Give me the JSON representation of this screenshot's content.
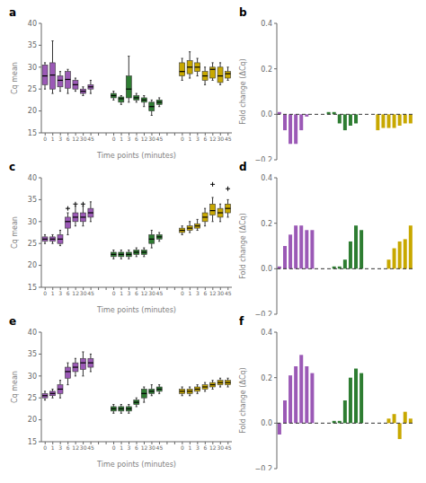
{
  "chart_data": [
    {
      "type": "box",
      "title": "a",
      "xlabel": "Time points (minutes)",
      "ylabel": "Cq mean",
      "categories": [
        "0",
        "1",
        "3",
        "6",
        "12",
        "30",
        "45"
      ],
      "ylim": [
        15,
        40
      ],
      "yticks": [
        15,
        20,
        25,
        30,
        35,
        40
      ],
      "grid": false,
      "series": [
        {
          "color": "#9B59B6",
          "medians": [
            28.0,
            28.2,
            27.0,
            27.2,
            26.0,
            24.5,
            25.5
          ],
          "q1": [
            26.0,
            25.0,
            25.5,
            25.2,
            25.0,
            24.0,
            25.0
          ],
          "q3": [
            30.5,
            31.0,
            28.0,
            29.0,
            27.0,
            25.0,
            26.0
          ],
          "whisker_low": [
            25.0,
            24.0,
            24.5,
            24.0,
            24.5,
            23.5,
            24.0
          ],
          "whisker_high": [
            31.0,
            36.0,
            29.0,
            29.5,
            27.5,
            25.5,
            27.0
          ],
          "outliers": [
            null,
            null,
            null,
            null,
            null,
            null,
            null
          ]
        },
        {
          "color": "#2E7D32",
          "medians": [
            23.5,
            22.8,
            25.0,
            23.0,
            22.5,
            21.0,
            22.0
          ],
          "q1": [
            23.0,
            22.0,
            23.0,
            22.5,
            22.0,
            20.0,
            21.5
          ],
          "q3": [
            24.0,
            23.2,
            28.0,
            23.5,
            23.0,
            22.0,
            22.5
          ],
          "whisker_low": [
            22.5,
            21.5,
            22.0,
            22.0,
            21.0,
            19.0,
            21.0
          ],
          "whisker_high": [
            24.5,
            23.5,
            32.5,
            24.0,
            23.5,
            22.5,
            23.0
          ],
          "outliers": [
            null,
            null,
            null,
            null,
            null,
            null,
            null
          ]
        },
        {
          "color": "#C8A800",
          "medians": [
            29.0,
            30.0,
            30.0,
            28.0,
            29.5,
            28.0,
            28.5
          ],
          "q1": [
            28.0,
            28.5,
            29.0,
            27.0,
            27.5,
            26.5,
            27.5
          ],
          "q3": [
            31.0,
            31.5,
            31.0,
            29.0,
            30.0,
            30.0,
            29.0
          ],
          "whisker_low": [
            27.0,
            27.5,
            28.0,
            26.0,
            27.0,
            26.0,
            27.0
          ],
          "whisker_high": [
            32.0,
            33.5,
            32.0,
            30.0,
            31.0,
            31.0,
            30.0
          ],
          "outliers": [
            null,
            null,
            null,
            null,
            null,
            null,
            null
          ]
        }
      ]
    },
    {
      "type": "bar",
      "title": "b",
      "ylabel": "Fold change  (ΔCq)",
      "ylim": [
        -0.2,
        0.4
      ],
      "yticks": [
        {
          "value": -0.2,
          "label": "−0.2"
        },
        {
          "value": 0,
          "label": "0.0"
        },
        0.2,
        0.4
      ],
      "tick_labels": "y",
      "grid": false,
      "series": [
        {
          "color": "#9B59B6",
          "values": [
            0.01,
            -0.07,
            -0.13,
            -0.13,
            -0.07,
            -0.01,
            0.0
          ]
        },
        {
          "color": "#2E7D32",
          "values": [
            0.01,
            0.01,
            -0.04,
            -0.07,
            -0.05,
            -0.04,
            0.0
          ]
        },
        {
          "color": "#C8A800",
          "values": [
            -0.07,
            -0.06,
            -0.06,
            -0.06,
            -0.05,
            -0.04,
            -0.04
          ]
        }
      ]
    },
    {
      "type": "box",
      "title": "c",
      "xlabel": "Time points (minutes)",
      "ylabel": "Cq mean",
      "categories": [
        "0",
        "1",
        "3",
        "6",
        "12",
        "30",
        "45"
      ],
      "ylim": [
        15,
        40
      ],
      "yticks": [
        15,
        20,
        25,
        30,
        35,
        40
      ],
      "grid": false,
      "series": [
        {
          "color": "#9B59B6",
          "medians": [
            26.0,
            26.0,
            26.0,
            30.0,
            31.0,
            31.0,
            32.0
          ],
          "q1": [
            25.5,
            25.5,
            25.0,
            28.5,
            30.0,
            30.0,
            31.0
          ],
          "q3": [
            26.5,
            26.5,
            27.0,
            31.0,
            32.0,
            32.0,
            33.0
          ],
          "whisker_low": [
            25.0,
            25.0,
            24.5,
            27.0,
            29.0,
            29.0,
            30.0
          ],
          "whisker_high": [
            27.0,
            27.0,
            28.0,
            32.0,
            33.5,
            33.5,
            34.5
          ],
          "outliers": [
            null,
            null,
            null,
            33.0,
            34.0,
            34.0,
            null
          ]
        },
        {
          "color": "#2E7D32",
          "medians": [
            22.5,
            22.5,
            22.5,
            23.0,
            23.0,
            26.0,
            26.5
          ],
          "q1": [
            22.0,
            22.0,
            22.0,
            22.5,
            22.5,
            25.0,
            26.0
          ],
          "q3": [
            23.0,
            23.0,
            23.0,
            23.5,
            23.5,
            27.0,
            27.0
          ],
          "whisker_low": [
            21.5,
            21.5,
            21.5,
            22.0,
            22.0,
            24.0,
            25.5
          ],
          "whisker_high": [
            23.5,
            23.5,
            23.5,
            24.0,
            24.0,
            28.0,
            27.5
          ],
          "outliers": [
            null,
            null,
            null,
            null,
            null,
            null,
            null
          ]
        },
        {
          "color": "#C8A800",
          "medians": [
            28.0,
            28.5,
            29.0,
            31.0,
            32.5,
            32.0,
            33.0
          ],
          "q1": [
            27.5,
            28.0,
            28.5,
            30.0,
            31.5,
            31.0,
            32.0
          ],
          "q3": [
            28.5,
            29.0,
            29.5,
            32.0,
            34.0,
            33.0,
            34.0
          ],
          "whisker_low": [
            27.0,
            27.5,
            28.0,
            29.0,
            30.0,
            30.0,
            31.0
          ],
          "whisker_high": [
            29.0,
            30.0,
            30.5,
            33.0,
            35.5,
            34.0,
            35.0
          ],
          "outliers": [
            null,
            null,
            null,
            null,
            38.5,
            null,
            37.5
          ]
        }
      ]
    },
    {
      "type": "bar",
      "title": "d",
      "ylabel": "Fold change  (ΔCq)",
      "ylim": [
        -0.2,
        0.4
      ],
      "yticks": [
        {
          "value": -0.2,
          "label": "−0.2"
        },
        {
          "value": 0,
          "label": "0.0"
        },
        0.2,
        0.4
      ],
      "tick_labels": "y",
      "grid": false,
      "series": [
        {
          "color": "#9B59B6",
          "values": [
            0.01,
            0.1,
            0.15,
            0.19,
            0.19,
            0.17,
            0.17
          ]
        },
        {
          "color": "#2E7D32",
          "values": [
            0.0,
            0.01,
            0.01,
            0.04,
            0.12,
            0.19,
            0.17
          ]
        },
        {
          "color": "#C8A800",
          "values": [
            0.0,
            0.0,
            0.04,
            0.09,
            0.12,
            0.13,
            0.19
          ]
        }
      ]
    },
    {
      "type": "box",
      "title": "e",
      "xlabel": "Time points (minutes)",
      "ylabel": "Cq mean",
      "categories": [
        "0",
        "1",
        "3",
        "6",
        "12",
        "30",
        "45"
      ],
      "ylim": [
        15,
        40
      ],
      "yticks": [
        15,
        20,
        25,
        30,
        35,
        40
      ],
      "grid": false,
      "series": [
        {
          "color": "#9B59B6",
          "medians": [
            25.5,
            26.0,
            27.0,
            31.0,
            32.0,
            33.0,
            33.0
          ],
          "q1": [
            25.0,
            25.5,
            26.0,
            29.5,
            31.0,
            31.5,
            32.0
          ],
          "q3": [
            26.0,
            26.5,
            28.0,
            32.0,
            33.0,
            34.0,
            34.0
          ],
          "whisker_low": [
            24.5,
            25.0,
            25.0,
            28.0,
            30.0,
            30.0,
            31.0
          ],
          "whisker_high": [
            26.5,
            27.0,
            29.0,
            33.0,
            34.0,
            35.5,
            35.0
          ],
          "outliers": [
            null,
            null,
            null,
            null,
            null,
            null,
            null
          ]
        },
        {
          "color": "#2E7D32",
          "medians": [
            22.5,
            22.5,
            22.5,
            24.0,
            26.0,
            26.5,
            27.0
          ],
          "q1": [
            22.0,
            22.0,
            22.0,
            23.5,
            25.0,
            26.0,
            26.5
          ],
          "q3": [
            23.0,
            23.0,
            23.0,
            24.5,
            27.0,
            27.0,
            27.5
          ],
          "whisker_low": [
            21.5,
            21.5,
            21.5,
            23.0,
            24.0,
            25.5,
            26.0
          ],
          "whisker_high": [
            23.5,
            23.5,
            23.5,
            25.0,
            27.5,
            28.0,
            28.0
          ],
          "outliers": [
            null,
            null,
            null,
            null,
            null,
            null,
            null
          ]
        },
        {
          "color": "#C8A800",
          "medians": [
            26.5,
            26.5,
            27.0,
            27.5,
            28.0,
            28.5,
            28.5
          ],
          "q1": [
            26.0,
            26.0,
            26.5,
            27.0,
            27.5,
            28.0,
            28.0
          ],
          "q3": [
            27.0,
            27.0,
            27.5,
            28.0,
            28.5,
            29.0,
            29.0
          ],
          "whisker_low": [
            25.5,
            25.5,
            26.0,
            26.5,
            27.0,
            27.5,
            27.5
          ],
          "whisker_high": [
            27.5,
            27.5,
            28.0,
            28.5,
            29.0,
            29.5,
            29.5
          ],
          "outliers": [
            null,
            null,
            null,
            null,
            null,
            null,
            null
          ]
        }
      ]
    },
    {
      "type": "bar",
      "title": "f",
      "ylabel": "Fold change  (ΔCq)",
      "ylim": [
        -0.2,
        0.4
      ],
      "yticks": [
        {
          "value": -0.2,
          "label": "−0.2"
        },
        {
          "value": 0,
          "label": "0.0"
        },
        0.2,
        0.4
      ],
      "tick_labels": "y",
      "grid": false,
      "series": [
        {
          "color": "#9B59B6",
          "values": [
            -0.05,
            0.1,
            0.21,
            0.25,
            0.3,
            0.25,
            0.22
          ]
        },
        {
          "color": "#2E7D32",
          "values": [
            0.0,
            0.01,
            0.01,
            0.1,
            0.2,
            0.24,
            0.22
          ]
        },
        {
          "color": "#C8A800",
          "values": [
            0.0,
            0.0,
            0.02,
            0.04,
            -0.07,
            0.05,
            0.02
          ]
        }
      ]
    }
  ]
}
